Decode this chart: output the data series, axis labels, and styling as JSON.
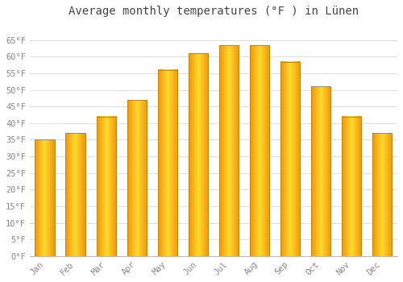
{
  "title": "Average monthly temperatures (°F ) in Lünen",
  "months": [
    "Jan",
    "Feb",
    "Mar",
    "Apr",
    "May",
    "Jun",
    "Jul",
    "Aug",
    "Sep",
    "Oct",
    "Nov",
    "Dec"
  ],
  "values": [
    35,
    37,
    42,
    47,
    56,
    61,
    63.5,
    63.5,
    58.5,
    51,
    42,
    37
  ],
  "bar_color": "#FFA500",
  "bar_edge_color": "#E89000",
  "background_color": "#ffffff",
  "plot_bg_color": "#ffffff",
  "grid_color": "#dddddd",
  "text_color": "#888888",
  "title_color": "#444444",
  "ylim_min": 0,
  "ylim_max": 70,
  "yticks": [
    0,
    5,
    10,
    15,
    20,
    25,
    30,
    35,
    40,
    45,
    50,
    55,
    60,
    65
  ],
  "ytick_labels": [
    "0°F",
    "5°F",
    "10°F",
    "15°F",
    "20°F",
    "25°F",
    "30°F",
    "35°F",
    "40°F",
    "45°F",
    "50°F",
    "55°F",
    "60°F",
    "65°F"
  ],
  "title_fontsize": 10,
  "tick_fontsize": 7.5,
  "figsize": [
    5.0,
    3.5
  ],
  "dpi": 100
}
